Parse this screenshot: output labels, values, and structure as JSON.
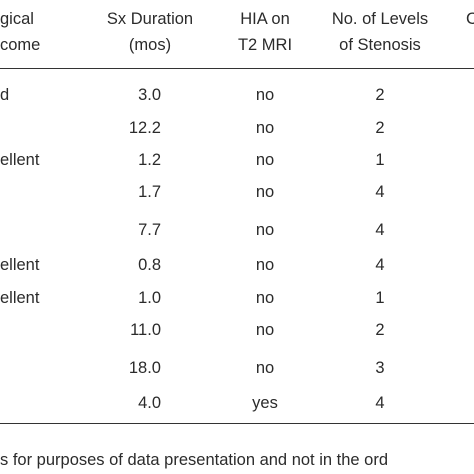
{
  "table": {
    "columns": [
      {
        "lines": [
          "gical",
          "come"
        ]
      },
      {
        "lines": [
          "Sx Duration",
          "(mos)"
        ]
      },
      {
        "lines": [
          "HIA on",
          "T2 MRI"
        ]
      },
      {
        "lines": [
          "No. of Levels",
          "of Stenosis"
        ]
      },
      {
        "lines": [
          "C"
        ]
      }
    ],
    "rows": [
      {
        "outcome": "d",
        "duration": "3.0",
        "hia": "no",
        "levels": "2"
      },
      {
        "duration": "12.2",
        "hia": "no",
        "levels": "2"
      },
      {
        "outcome": "ellent",
        "duration": "1.2",
        "hia": "no",
        "levels": "1"
      },
      {
        "duration": "1.7",
        "hia": "no",
        "levels": "4"
      },
      {
        "duration": "7.7",
        "hia": "no",
        "levels": "4"
      },
      {
        "outcome": "ellent",
        "duration": "0.8",
        "hia": "no",
        "levels": "4"
      },
      {
        "outcome": "ellent",
        "duration": "1.0",
        "hia": "no",
        "levels": "1"
      },
      {
        "duration": "11.0",
        "hia": "no",
        "levels": "2"
      },
      {
        "duration": "18.0",
        "hia": "no",
        "levels": "3"
      },
      {
        "duration": "4.0",
        "hia": "yes",
        "levels": "4"
      }
    ]
  },
  "footnote": "s for purposes of data presentation and not in the ord"
}
